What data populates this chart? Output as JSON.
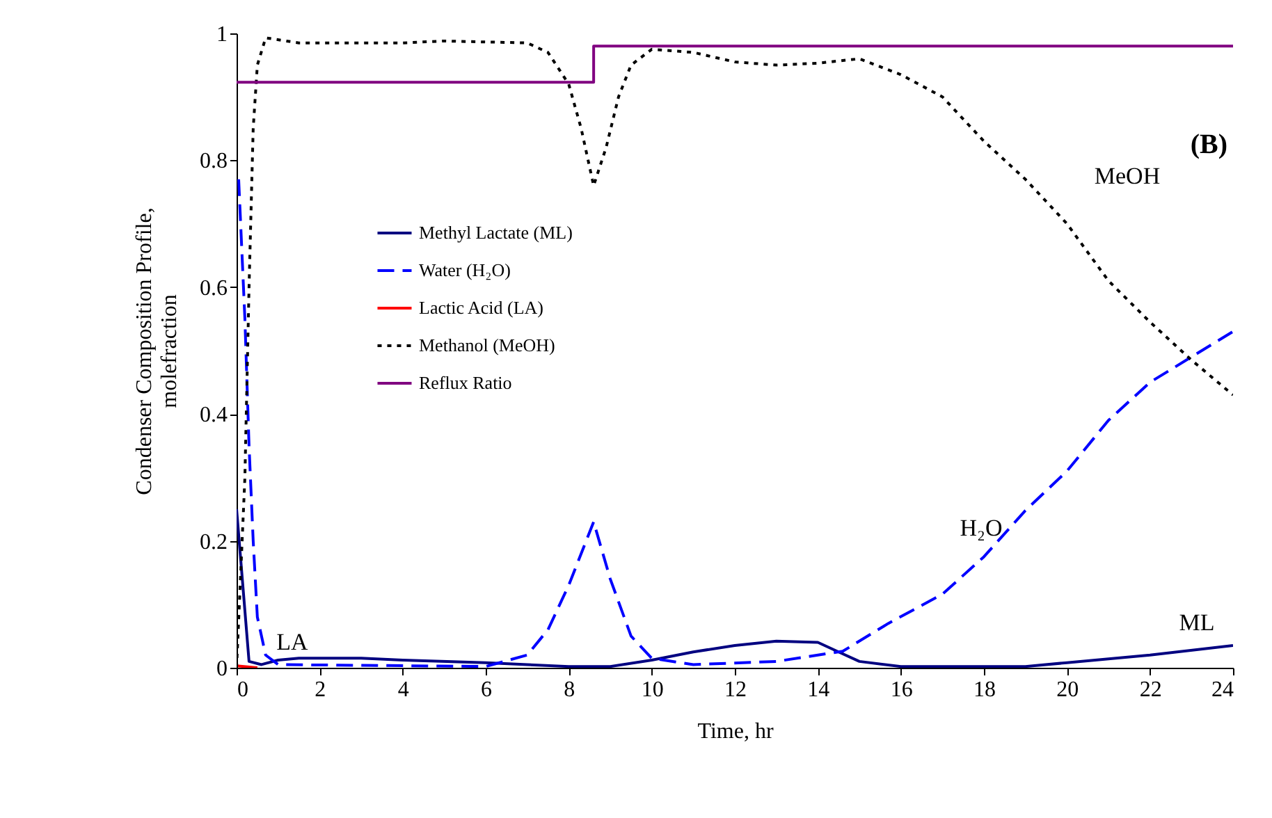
{
  "chart_data": {
    "type": "line",
    "xlabel": "Time, hr",
    "ylabel": "Condenser Composition Profile, molefraction",
    "xlim": [
      0,
      24
    ],
    "xticks": [
      0,
      2,
      4,
      6,
      8,
      10,
      12,
      14,
      16,
      18,
      20,
      22,
      24
    ],
    "ylim": [
      0,
      1
    ],
    "yticks": [
      0,
      0.2,
      0.4,
      0.6,
      0.8,
      1
    ],
    "grid": false,
    "legend": "left",
    "annotations": [
      "(B)",
      "MeOH",
      "H₂O",
      "ML",
      "LA"
    ],
    "series": [
      {
        "name": "Methyl Lactate (ML)",
        "color": "#000080",
        "line_style": "solid",
        "x": [
          0,
          0.3,
          0.6,
          1,
          1.5,
          3,
          4,
          6,
          7,
          8,
          9,
          10,
          11,
          12,
          13,
          14,
          14.5,
          15,
          16,
          19,
          20,
          22,
          24
        ],
        "values": [
          0.25,
          0.01,
          0.005,
          0.012,
          0.015,
          0.015,
          0.012,
          0.008,
          0.005,
          0.002,
          0.002,
          0.012,
          0.025,
          0.035,
          0.042,
          0.04,
          0.025,
          0.01,
          0.002,
          0.002,
          0.008,
          0.02,
          0.035
        ]
      },
      {
        "name": "Water (H₂O)",
        "color": "#0000ff",
        "line_style": "dashed",
        "x": [
          0.05,
          0.2,
          0.3,
          0.4,
          0.5,
          0.7,
          1,
          6,
          7,
          7.5,
          8,
          8.6,
          9,
          9.5,
          10,
          11,
          13,
          14,
          14.6,
          15.7,
          17,
          18,
          19,
          20,
          21,
          22,
          23,
          24
        ],
        "values": [
          0.77,
          0.55,
          0.35,
          0.2,
          0.08,
          0.02,
          0.005,
          0.002,
          0.02,
          0.06,
          0.13,
          0.23,
          0.14,
          0.05,
          0.015,
          0.005,
          0.01,
          0.02,
          0.026,
          0.07,
          0.116,
          0.175,
          0.248,
          0.31,
          0.39,
          0.45,
          0.49,
          0.53
        ]
      },
      {
        "name": "Lactic Acid (LA)",
        "color": "#ff0000",
        "line_style": "solid",
        "x": [
          0,
          0.5
        ],
        "values": [
          0.003,
          0
        ]
      },
      {
        "name": "Methanol (MeOH)",
        "color": "#000000",
        "line_style": "dotted",
        "x": [
          0,
          0.2,
          0.3,
          0.4,
          0.5,
          0.7,
          1.5,
          4,
          5,
          7,
          7.5,
          8,
          8.3,
          8.6,
          8.9,
          9.2,
          9.5,
          10,
          11,
          12,
          13,
          14,
          15,
          16,
          17,
          18,
          19,
          20,
          21,
          22,
          23,
          24
        ],
        "values": [
          0,
          0.3,
          0.6,
          0.85,
          0.95,
          0.993,
          0.985,
          0.985,
          0.988,
          0.985,
          0.97,
          0.92,
          0.85,
          0.76,
          0.82,
          0.9,
          0.95,
          0.975,
          0.97,
          0.955,
          0.95,
          0.953,
          0.96,
          0.935,
          0.9,
          0.83,
          0.77,
          0.7,
          0.61,
          0.545,
          0.485,
          0.43
        ]
      },
      {
        "name": "Reflux Ratio",
        "color": "#800080",
        "line_style": "solid",
        "type": "step",
        "x": [
          0,
          8.6,
          24
        ],
        "values": [
          0.923,
          0.98,
          0.98
        ]
      }
    ]
  }
}
